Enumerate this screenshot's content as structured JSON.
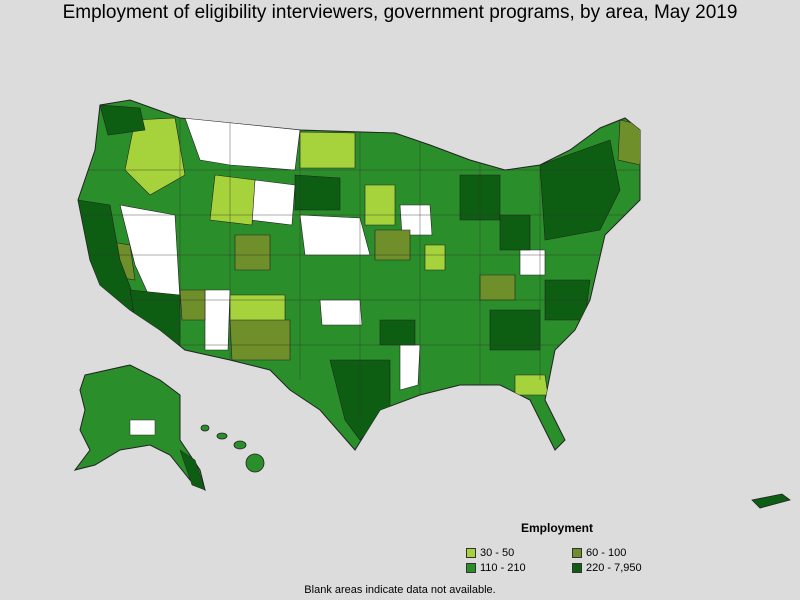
{
  "title": "Employment of eligibility interviewers, government programs, by area, May 2019",
  "legend": {
    "title": "Employment",
    "items": [
      {
        "label": "30 - 50",
        "color": "#a6d33b"
      },
      {
        "label": "60 - 100",
        "color": "#6e8f2a"
      },
      {
        "label": "110 - 210",
        "color": "#2a8f2a"
      },
      {
        "label": "220 - 7,950",
        "color": "#0d5e12"
      }
    ]
  },
  "note": "Blank areas indicate data not available.",
  "colors": {
    "background": "#dcdcdc",
    "no_data": "#ffffff",
    "border": "#222222"
  }
}
